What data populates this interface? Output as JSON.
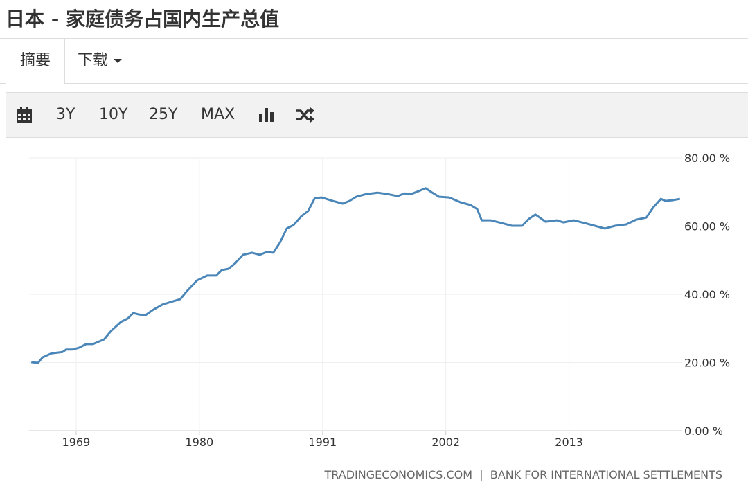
{
  "header": {
    "title": "日本 - 家庭债务占国内生产总值"
  },
  "tabs": [
    "摘要",
    "下载"
  ],
  "toolbar": [
    "3Y",
    "10Y",
    "25Y",
    "MAX"
  ],
  "chart_data": {
    "type": "line",
    "color": "#4a86b8",
    "grid": true,
    "source": "TRADINGECONOMICS.COM  |  BANK FOR INTERNATIONAL SETTLEMENTS",
    "x": [
      1965.0,
      1965.6,
      1966.0,
      1966.8,
      1967.8,
      1968.1,
      1968.7,
      1969.3,
      1969.9,
      1970.5,
      1971.5,
      1972.1,
      1973.0,
      1973.6,
      1974.1,
      1974.6,
      1975.2,
      1975.8,
      1976.7,
      1977.3,
      1978.3,
      1978.9,
      1979.8,
      1980.7,
      1981.5,
      1982.0,
      1982.6,
      1983.2,
      1983.9,
      1984.7,
      1985.4,
      1986.0,
      1986.6,
      1987.2,
      1987.8,
      1988.4,
      1989.1,
      1989.7,
      1990.3,
      1990.9,
      1991.5,
      1992.1,
      1992.8,
      1993.4,
      1994.0,
      1994.9,
      1995.9,
      1996.8,
      1997.7,
      1998.3,
      1998.9,
      1999.6,
      2000.2,
      2000.8,
      2001.4,
      2002.3,
      2003.3,
      2004.2,
      2004.8,
      2005.2,
      2006.0,
      2007.0,
      2007.9,
      2008.8,
      2009.4,
      2010.0,
      2010.9,
      2011.9,
      2012.5,
      2013.4,
      2014.4,
      2015.3,
      2016.2,
      2017.1,
      2018.1,
      2019.0,
      2019.9,
      2020.5,
      2021.2,
      2021.6,
      2022.2,
      2022.9
    ],
    "values": [
      20.1,
      19.9,
      21.5,
      22.7,
      23.1,
      23.8,
      23.8,
      24.4,
      25.4,
      25.4,
      26.8,
      29.2,
      31.9,
      32.9,
      34.5,
      34.1,
      33.9,
      35.3,
      37.0,
      37.6,
      38.6,
      41.0,
      44.1,
      45.5,
      45.5,
      47.1,
      47.5,
      49.1,
      51.6,
      52.2,
      51.6,
      52.4,
      52.2,
      55.2,
      59.3,
      60.3,
      62.9,
      64.4,
      68.2,
      68.4,
      67.8,
      67.2,
      66.6,
      67.4,
      68.6,
      69.4,
      69.8,
      69.4,
      68.8,
      69.6,
      69.4,
      70.3,
      71.1,
      69.8,
      68.6,
      68.4,
      67.0,
      66.2,
      65.0,
      61.7,
      61.7,
      60.9,
      60.1,
      60.1,
      62.1,
      63.4,
      61.3,
      61.7,
      61.1,
      61.7,
      60.9,
      60.1,
      59.3,
      60.1,
      60.5,
      61.9,
      62.5,
      65.4,
      68.0,
      67.4,
      67.6,
      68.0
    ],
    "xlim": [
      1964.8,
      2023.1
    ],
    "xticks": [
      1969,
      1980,
      1991,
      2002,
      2013
    ],
    "ylim": [
      0,
      80
    ],
    "yticks": [
      {
        "value": 0,
        "label": "0.00 %"
      },
      {
        "value": 20,
        "label": "20.00 %"
      },
      {
        "value": 40,
        "label": "40.00 %"
      },
      {
        "value": 60,
        "label": "60.00 %"
      },
      {
        "value": 80,
        "label": "80.00 %"
      }
    ]
  }
}
